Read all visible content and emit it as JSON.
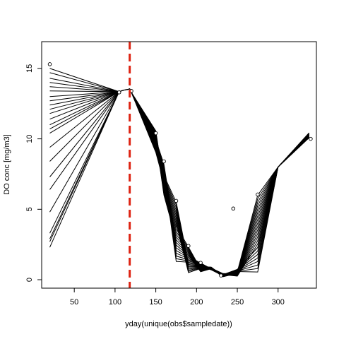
{
  "chart_data": {
    "type": "line",
    "title": "",
    "xlabel": "yday(unique(obs$sampledate))",
    "ylabel": "DO conc [mg/m3]",
    "xlim": [
      10,
      347
    ],
    "ylim": [
      -0.6,
      16.9
    ],
    "x_ticks": [
      50,
      100,
      150,
      200,
      250,
      300
    ],
    "y_ticks": [
      0,
      5,
      10,
      15
    ],
    "x_tick_labels": [
      "50",
      "100",
      "150",
      "200",
      "250",
      "300"
    ],
    "y_tick_labels": [
      "0",
      "5",
      "10",
      "15"
    ],
    "grid": false,
    "legend": "none",
    "vline": {
      "x": 118,
      "color": "#dd2211",
      "style": "dashed"
    },
    "line_color": "#000000",
    "start_x": 20,
    "start_values": [
      15.0,
      14.7,
      14.3,
      14.0,
      13.7,
      13.4,
      13.0,
      12.7,
      12.4,
      12.1,
      11.8,
      11.4,
      11.0,
      10.7,
      10.4,
      9.4,
      8.4,
      7.3,
      6.4,
      4.8,
      3.3,
      2.9,
      2.7,
      2.3
    ],
    "shared_path": {
      "x": [
        105,
        110,
        115,
        118,
        120
      ],
      "y": [
        13.35,
        13.45,
        13.5,
        13.55,
        13.3
      ]
    },
    "late_path": {
      "x": [
        300,
        338
      ],
      "y": [
        8.0,
        10.25
      ]
    },
    "envelope_x": [
      120,
      150,
      160,
      175,
      190,
      205,
      218,
      232,
      250,
      275,
      300
    ],
    "envelope_low": [
      13.3,
      9.0,
      6.0,
      1.2,
      0.5,
      0.55,
      0.7,
      0.2,
      0.25,
      0.4,
      8.0
    ],
    "envelope_high": [
      13.4,
      10.6,
      8.3,
      5.6,
      2.4,
      1.2,
      0.9,
      0.45,
      0.75,
      6.1,
      8.0
    ],
    "observations": {
      "x": [
        20,
        105,
        120,
        150,
        160,
        175,
        190,
        205,
        230,
        245,
        275,
        340
      ],
      "y": [
        15.3,
        13.3,
        13.4,
        10.4,
        8.4,
        5.6,
        2.4,
        1.2,
        0.3,
        5.05,
        6.05,
        10.0
      ]
    }
  }
}
